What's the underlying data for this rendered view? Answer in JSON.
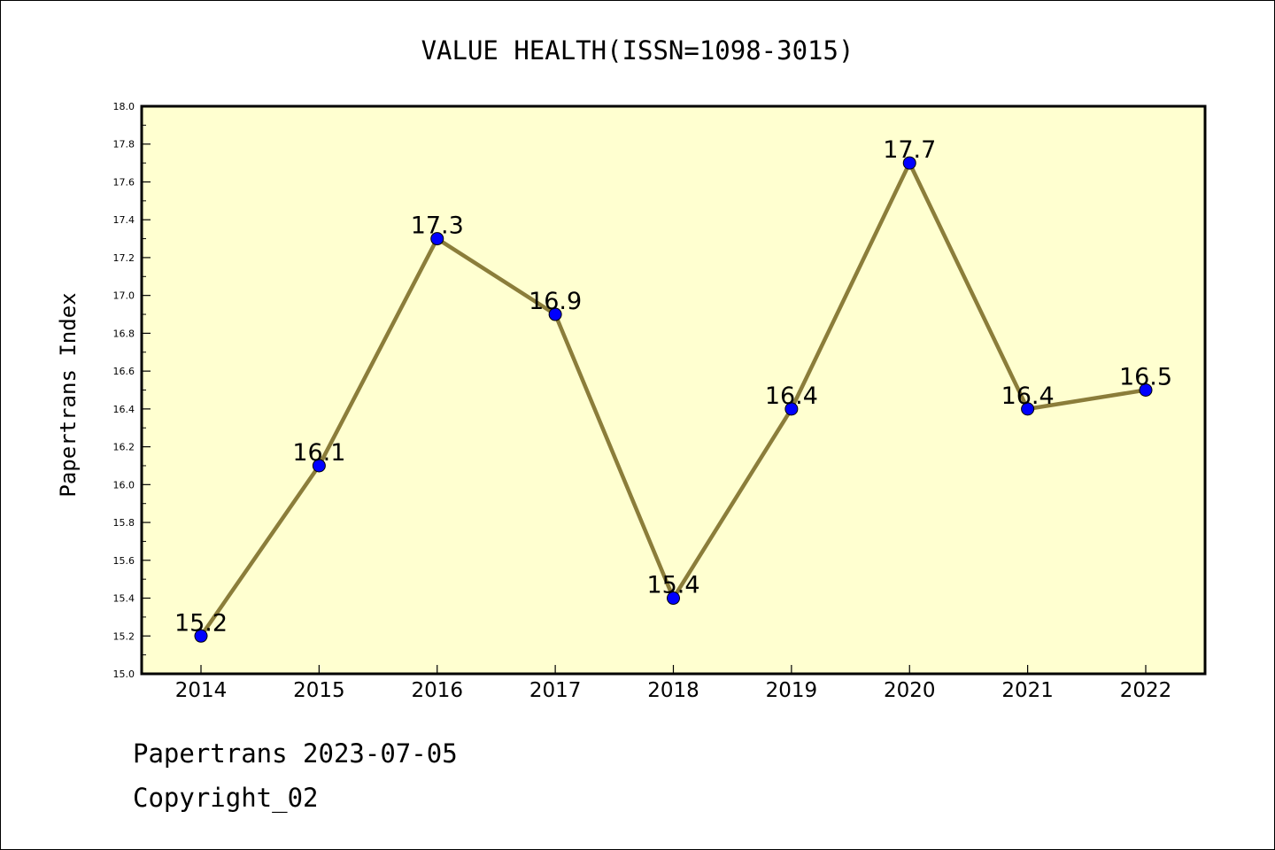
{
  "chart_data": {
    "type": "line",
    "title": "VALUE HEALTH(ISSN=1098-3015)",
    "ylabel": "Papertrans Index",
    "xlabel": "",
    "categories": [
      "2014",
      "2015",
      "2016",
      "2017",
      "2018",
      "2019",
      "2020",
      "2021",
      "2022"
    ],
    "values": [
      15.2,
      16.1,
      17.3,
      16.9,
      15.4,
      16.4,
      17.7,
      16.4,
      16.5
    ],
    "data_labels": [
      "15.2",
      "16.1",
      "17.3",
      "16.9",
      "15.4",
      "16.4",
      "17.7",
      "16.4",
      "16.5"
    ],
    "ylim": [
      15.0,
      18.0
    ],
    "y_ticks": [
      "15.0",
      "15.2",
      "15.4",
      "15.6",
      "15.8",
      "16.0",
      "16.2",
      "16.4",
      "16.6",
      "16.8",
      "17.0",
      "17.2",
      "17.4",
      "17.6",
      "17.8",
      "18.0"
    ],
    "grid": false,
    "legend": "none",
    "colors": {
      "plot_background": "#ffffd0",
      "line": "#8b7d3a",
      "marker": "#0000ff",
      "marker_edge": "#000000"
    }
  },
  "footer": {
    "date_text": "Papertrans 2023-07-05",
    "copyright_text": "Copyright_02"
  }
}
